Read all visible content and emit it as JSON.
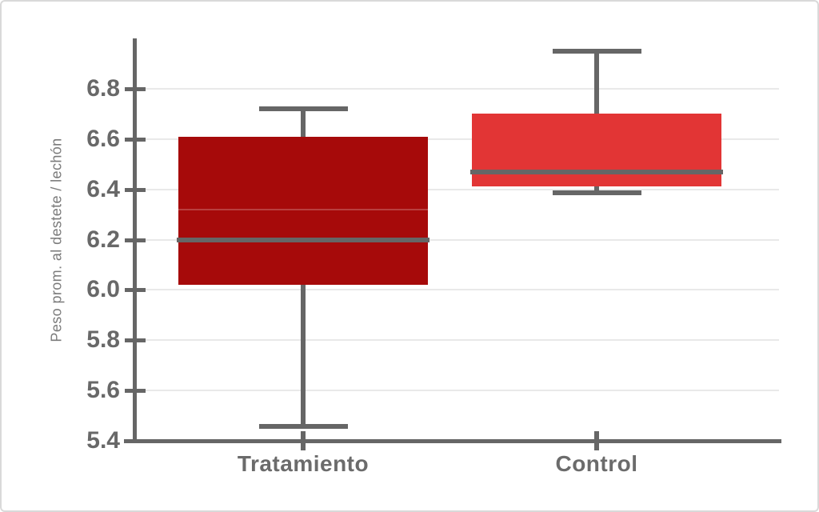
{
  "chart_data": {
    "type": "boxplot",
    "ylabel": "Peso prom. al destete / lechón",
    "xlabel": "",
    "categories": [
      "Tratamiento",
      "Control"
    ],
    "ylim": [
      5.4,
      7.0
    ],
    "yticks": [
      5.4,
      5.6,
      5.8,
      6.0,
      6.2,
      6.4,
      6.6,
      6.8
    ],
    "ytick_decimals": 1,
    "grid": "horizontal-light",
    "legend": "none",
    "series": [
      {
        "name": "Tratamiento",
        "whisker_low": 5.46,
        "q1": 6.02,
        "median": 6.2,
        "q3": 6.61,
        "whisker_high": 6.72,
        "faint_inner_line": 6.32,
        "fill": "#a60a0a"
      },
      {
        "name": "Control",
        "whisker_low": 6.39,
        "q1": 6.41,
        "median": 6.47,
        "q3": 6.7,
        "whisker_high": 6.95,
        "fill": "#e23535"
      }
    ],
    "style": {
      "axis_color": "#666666",
      "whisker_color": "#666666",
      "median_color": "#666666",
      "gridline_color": "#e9e9e9",
      "ytick_label_color": "#686868",
      "category_label_color": "#6b6b6b",
      "ylabel_color": "#7a7a7a",
      "frame_border_color": "#d9d9d9",
      "background": "#ffffff",
      "inner_line_overlay": "rgba(255,255,255,0.22)"
    }
  }
}
